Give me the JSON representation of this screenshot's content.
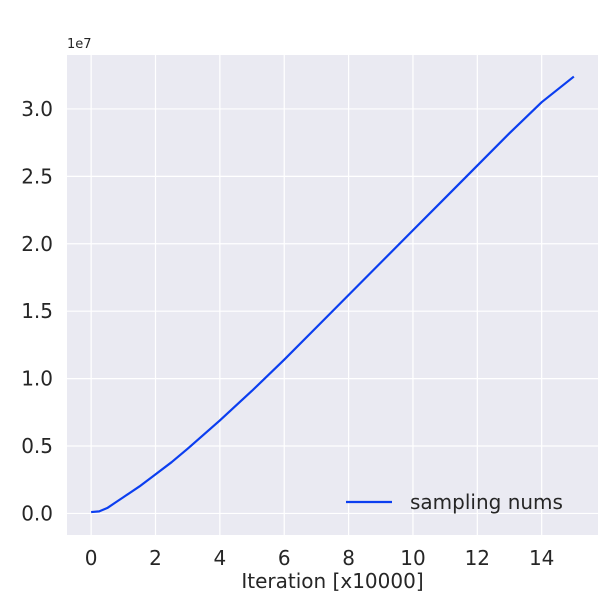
{
  "chart_data": {
    "type": "line",
    "title": "",
    "xlabel": "Iteration [x10000]",
    "ylabel": "",
    "y_offset_label": "1e7",
    "xlim": [
      -0.75,
      15.75
    ],
    "ylim": [
      -0.16,
      3.4
    ],
    "xticks": [
      0,
      2,
      4,
      6,
      8,
      10,
      12,
      14
    ],
    "xtick_labels": [
      "0",
      "2",
      "4",
      "6",
      "8",
      "10",
      "12",
      "14"
    ],
    "yticks": [
      0.0,
      0.5,
      1.0,
      1.5,
      2.0,
      2.5,
      3.0
    ],
    "ytick_labels": [
      "0.0",
      "0.5",
      "1.0",
      "1.5",
      "2.0",
      "2.5",
      "3.0"
    ],
    "grid": true,
    "legend_position": "lower-right",
    "background": "#eaeaf2",
    "series": [
      {
        "name": "sampling nums",
        "color": "#0b3ef0",
        "x": [
          0,
          0.25,
          0.5,
          0.75,
          1,
          1.5,
          2,
          2.5,
          3,
          4,
          5,
          6,
          7,
          8,
          9,
          10,
          11,
          12,
          13,
          14,
          15
        ],
        "y": [
          0.01,
          0.015,
          0.04,
          0.08,
          0.12,
          0.2,
          0.29,
          0.38,
          0.48,
          0.69,
          0.91,
          1.14,
          1.38,
          1.62,
          1.86,
          2.1,
          2.34,
          2.58,
          2.82,
          3.05,
          3.24
        ]
      }
    ]
  }
}
